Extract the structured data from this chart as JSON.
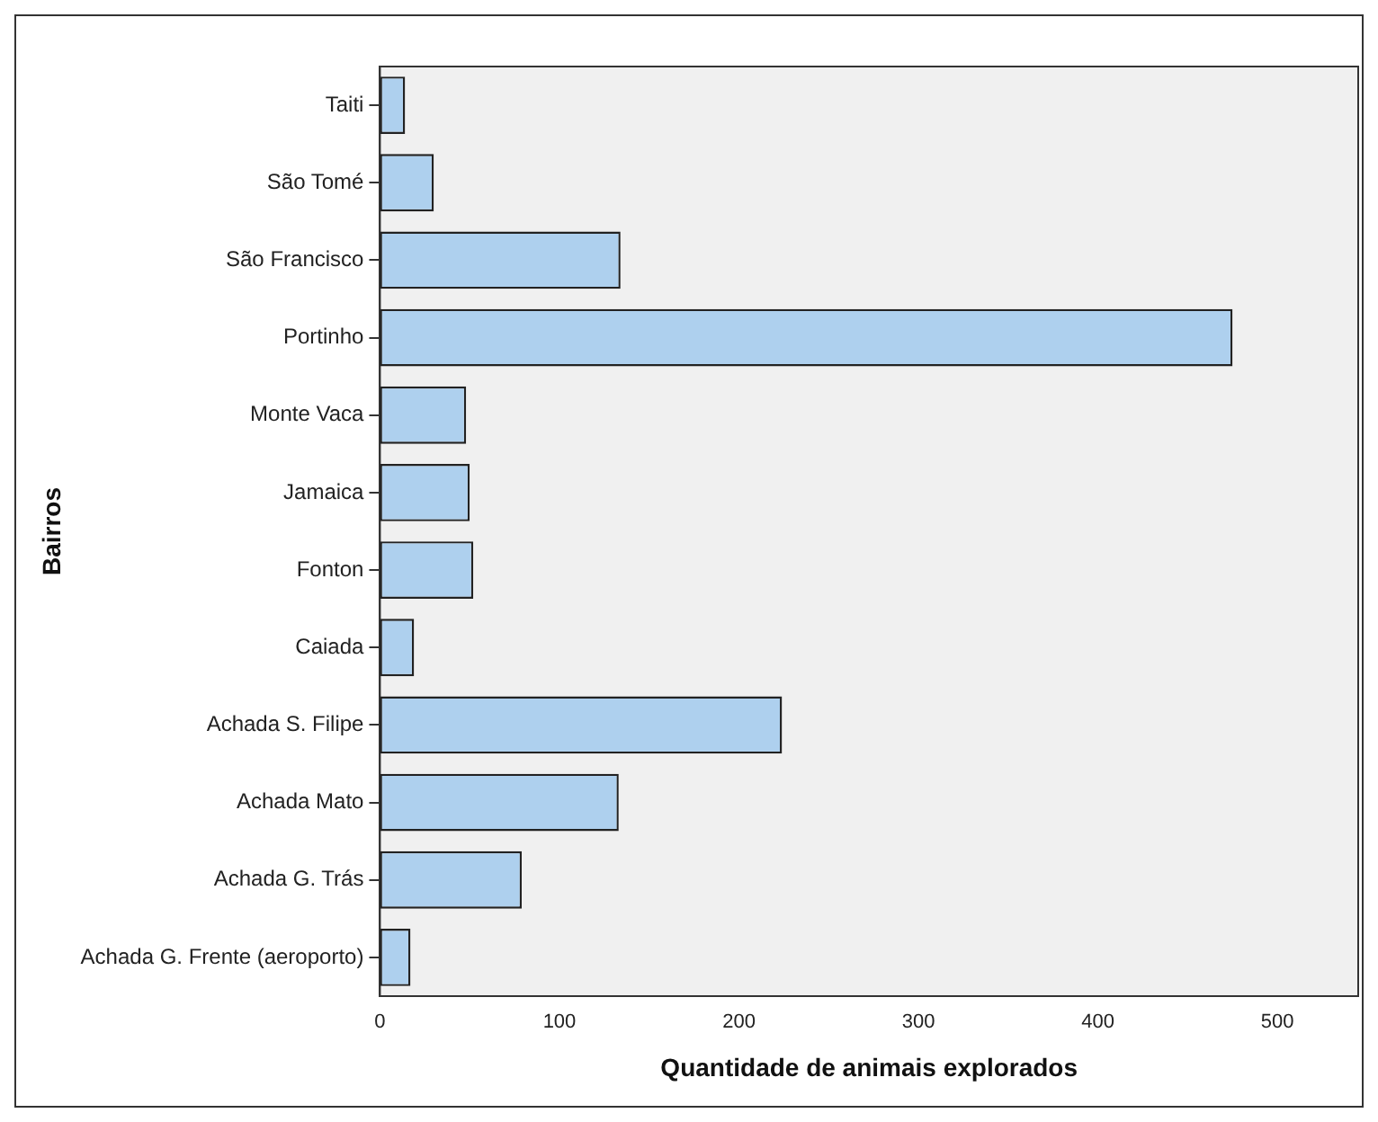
{
  "chart_data": {
    "type": "bar",
    "orientation": "horizontal",
    "xlabel": "Quantidade de animais explorados",
    "ylabel": "Bairros",
    "categories": [
      "Taiti",
      "São Tomé",
      "São Francisco",
      "Portinho",
      "Monte Vaca",
      "Jamaica",
      "Fonton",
      "Caiada",
      "Achada S. Filipe",
      "Achada Mato",
      "Achada G. Trás",
      "Achada G. Frente (aeroporto)"
    ],
    "values": [
      14,
      30,
      134,
      475,
      48,
      50,
      52,
      19,
      224,
      133,
      79,
      17
    ],
    "color": "#aed0ee",
    "xlim": [
      0,
      545
    ],
    "xticks": [
      0,
      100,
      200,
      300,
      400,
      500
    ],
    "grid": false,
    "legend": false
  }
}
